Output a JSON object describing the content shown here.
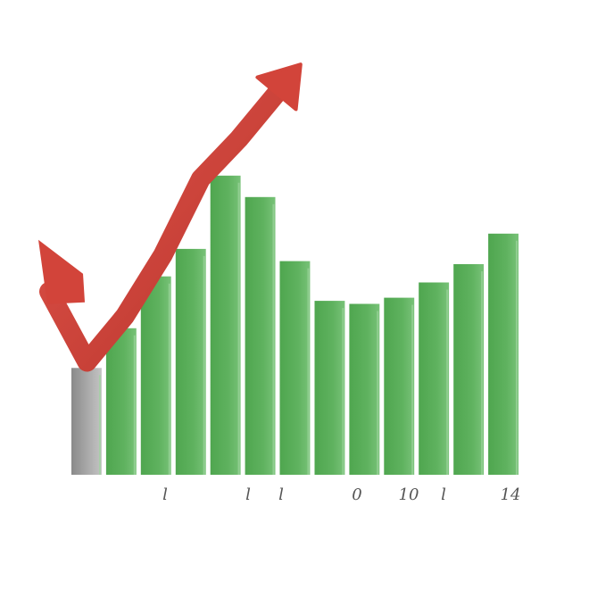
{
  "chart_data": {
    "type": "bar",
    "title": "",
    "xlabel": "",
    "ylabel": "",
    "ylim": [
      0,
      100
    ],
    "grid": false,
    "legend": "none",
    "tick_labels": [
      "l",
      "l",
      "l",
      "0",
      "10",
      "l",
      "14"
    ],
    "bars": [
      {
        "value": 35,
        "color": "#9c9c9c"
      },
      {
        "value": 48,
        "color": "#5aae5a"
      },
      {
        "value": 65,
        "color": "#5aae5a"
      },
      {
        "value": 74,
        "color": "#5aae5a"
      },
      {
        "value": 98,
        "color": "#5aae5a"
      },
      {
        "value": 91,
        "color": "#5aae5a"
      },
      {
        "value": 70,
        "color": "#5aae5a"
      },
      {
        "value": 57,
        "color": "#5aae5a"
      },
      {
        "value": 56,
        "color": "#5aae5a"
      },
      {
        "value": 58,
        "color": "#5aae5a"
      },
      {
        "value": 63,
        "color": "#5aae5a"
      },
      {
        "value": 69,
        "color": "#5aae5a"
      },
      {
        "value": 79,
        "color": "#5aae5a"
      }
    ],
    "trend_arrow": {
      "color": "#d2443a",
      "direction": "up",
      "values": [
        60,
        37,
        52,
        72,
        97,
        110,
        125
      ]
    },
    "colors": {
      "bar_primary": "#5aae5a",
      "bar_light": "#82c782",
      "bar_gray": "#9c9c9c",
      "arrow": "#d2443a"
    }
  }
}
